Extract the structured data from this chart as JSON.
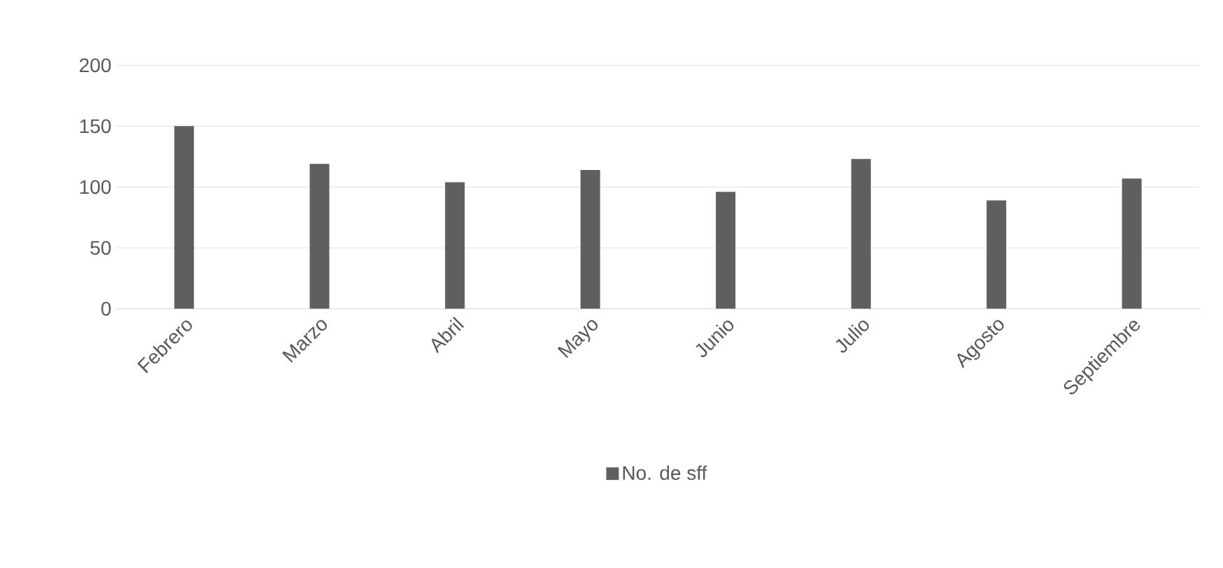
{
  "chart_data": {
    "type": "bar",
    "categories": [
      "Febrero",
      "Marzo",
      "Abril",
      "Mayo",
      "Junio",
      "Julio",
      "Agosto",
      "Septiembre"
    ],
    "series": [
      {
        "name": "No. de sff",
        "color": "#5f5f5f",
        "values": [
          150,
          119,
          104,
          114,
          96,
          123,
          89,
          107
        ]
      }
    ],
    "ylim": [
      0,
      200
    ],
    "yticks": [
      0,
      50,
      100,
      150,
      200
    ],
    "grid": "y",
    "legend": "bottom"
  }
}
